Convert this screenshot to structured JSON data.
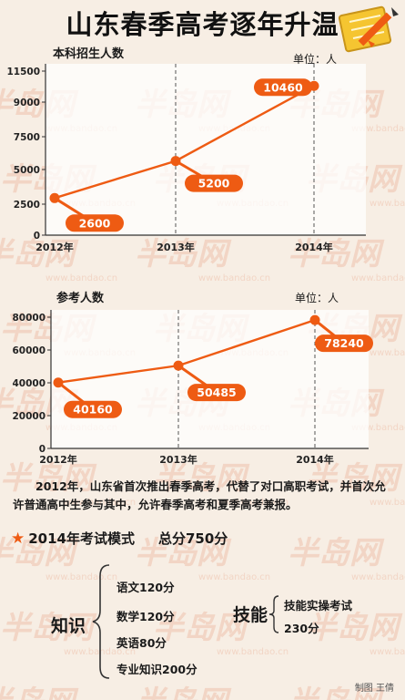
{
  "title": "山东春季高考逐年升温",
  "watermark": {
    "logo": "半岛网",
    "url": "www.bandao.cn"
  },
  "charts": [
    {
      "label": "本科招生人数",
      "unit": "单位：人",
      "yticks": [
        "11500",
        "9000",
        "7500",
        "5000",
        "2500",
        "0"
      ],
      "xticks": [
        "2012年",
        "2013年",
        "2014年"
      ]
    },
    {
      "label": "参考人数",
      "unit": "单位：人",
      "yticks": [
        "80000",
        "60000",
        "40000",
        "20000",
        "0"
      ],
      "xticks": [
        "2012年",
        "2013年",
        "2014年"
      ]
    }
  ],
  "chart_data": [
    {
      "type": "line",
      "title": "本科招生人数",
      "ylabel": "单位：人",
      "categories": [
        "2012年",
        "2013年",
        "2014年"
      ],
      "values": [
        2600,
        5200,
        10460
      ],
      "data_labels": [
        "2600",
        "5200",
        "10460"
      ],
      "yticks": [
        0,
        2500,
        5000,
        7500,
        9000,
        11500
      ],
      "ylim": [
        0,
        11500
      ],
      "grid": "vertical dashed",
      "color": "#ee5b13"
    },
    {
      "type": "line",
      "title": "参考人数",
      "ylabel": "单位：人",
      "categories": [
        "2012年",
        "2013年",
        "2014年"
      ],
      "values": [
        40160,
        50485,
        78240
      ],
      "data_labels": [
        "40160",
        "50485",
        "78240"
      ],
      "yticks": [
        0,
        20000,
        40000,
        60000,
        80000
      ],
      "ylim": [
        0,
        80000
      ],
      "grid": "vertical dashed",
      "color": "#ee5b13"
    }
  ],
  "paragraph": "2012年，山东省首次推出春季高考，代替了对口高职考试，并首次允许普通高中生参与其中，允许春季高考和夏季高考兼报。",
  "exam_mode": {
    "title": "2014年考试模式",
    "total": "总分750分",
    "knowledge": {
      "label": "知识",
      "items": [
        "语文120分",
        "数学120分",
        "英语80分",
        "专业知识200分"
      ]
    },
    "skill": {
      "label": "技能",
      "items": [
        "技能实操考试",
        "230分"
      ]
    }
  },
  "credit": "制图 王倩"
}
